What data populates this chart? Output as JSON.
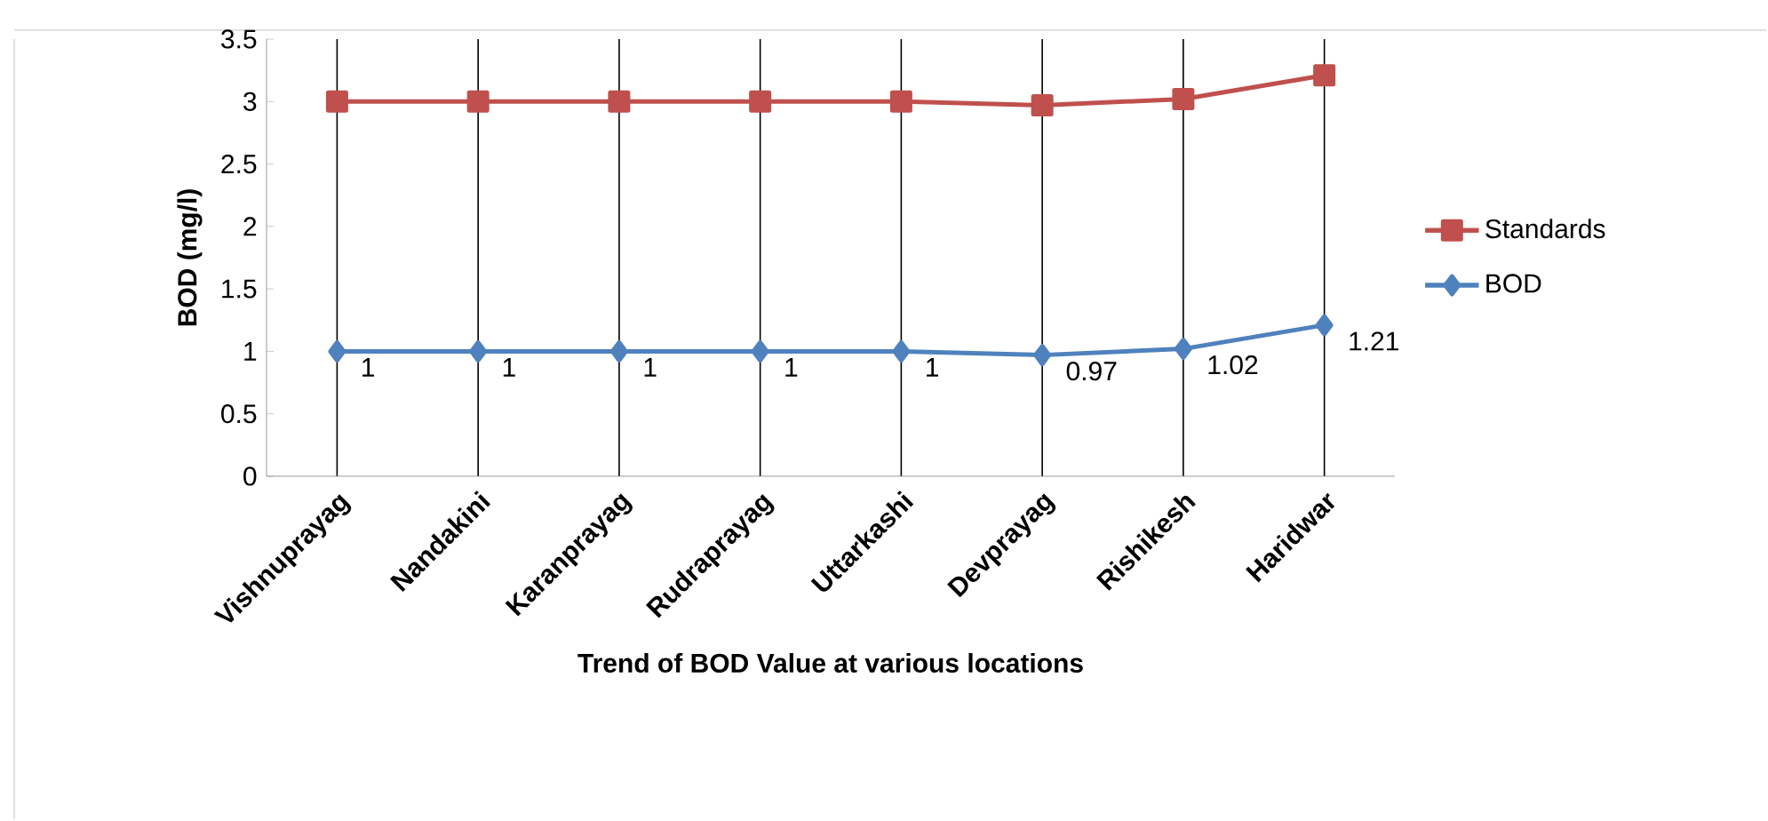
{
  "chart_data": {
    "type": "line",
    "xlabel": "Trend of BOD Value at various locations",
    "ylabel": "BOD (mg/l)",
    "categories": [
      "Vishnuprayag",
      "Nandakini",
      "Karanprayag",
      "Rudraprayag",
      "Uttarkashi",
      "Devprayag",
      "Rishikesh",
      "Haridwar"
    ],
    "series": [
      {
        "name": "Standards",
        "color": "#c0504d",
        "marker": "square",
        "values": [
          3,
          3,
          3,
          3,
          3,
          2.97,
          3.02,
          3.21
        ]
      },
      {
        "name": "BOD",
        "color": "#4f81bd",
        "marker": "diamond",
        "values": [
          1,
          1,
          1,
          1,
          1,
          0.97,
          1.02,
          1.21
        ],
        "value_labels": [
          "1",
          "1",
          "1",
          "1",
          "1",
          "0.97",
          "1.02",
          "1.21"
        ]
      }
    ],
    "ylim": [
      0,
      3.5
    ],
    "yticks": [
      0,
      0.5,
      1,
      1.5,
      2,
      2.5,
      3,
      3.5
    ],
    "grid": "x",
    "legend": "right"
  }
}
